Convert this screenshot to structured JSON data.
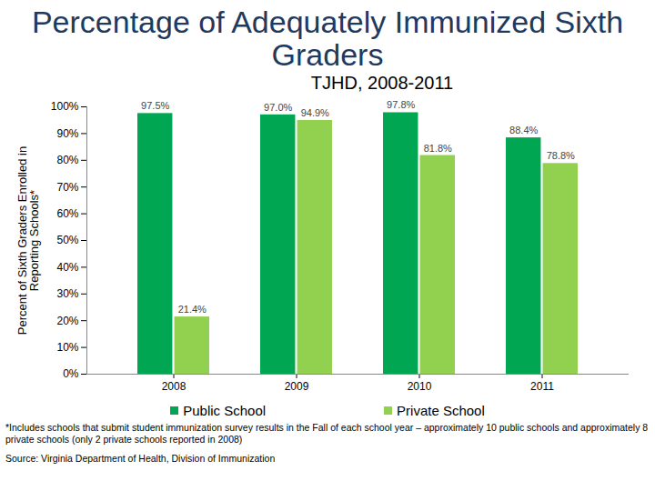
{
  "chart_data": {
    "type": "bar",
    "title": "Percentage of Adequately Immunized Sixth Graders",
    "subtitle": "TJHD, 2008-2011",
    "ylabel": "Percent of Sixth Graders Enrolled in Reporting Schools*",
    "categories": [
      "2008",
      "2009",
      "2010",
      "2011"
    ],
    "series": [
      {
        "name": "Public School",
        "color": "#00a651",
        "values": [
          97.5,
          97.0,
          97.8,
          88.4
        ],
        "value_labels": [
          "97.5%",
          "97.0%",
          "97.8%",
          "88.4%"
        ]
      },
      {
        "name": "Private School",
        "color": "#92d050",
        "values": [
          21.4,
          94.9,
          81.8,
          78.8
        ],
        "value_labels": [
          "21.4%",
          "94.9%",
          "81.8%",
          "78.8%"
        ]
      }
    ],
    "ylim": [
      0,
      100
    ],
    "yticks": [
      {
        "value": 0,
        "label": "0%"
      },
      {
        "value": 10,
        "label": "10%"
      },
      {
        "value": 20,
        "label": "20%"
      },
      {
        "value": 30,
        "label": "30%"
      },
      {
        "value": 40,
        "label": "40%"
      },
      {
        "value": 50,
        "label": "50%"
      },
      {
        "value": 60,
        "label": "60%"
      },
      {
        "value": 70,
        "label": "70%"
      },
      {
        "value": 80,
        "label": "80%"
      },
      {
        "value": 90,
        "label": "90%"
      },
      {
        "value": 100,
        "label": "100%"
      }
    ],
    "grid": false,
    "data_labels": true,
    "legend": "bottom",
    "annotations": [
      "*Includes schools that submit student immunization survey results in the Fall of each school year – approximately 10 public schools and approximately 8 private schools (only 2 private schools reported in 2008)",
      "Source: Virginia Department of Health, Division of Immunization"
    ]
  }
}
